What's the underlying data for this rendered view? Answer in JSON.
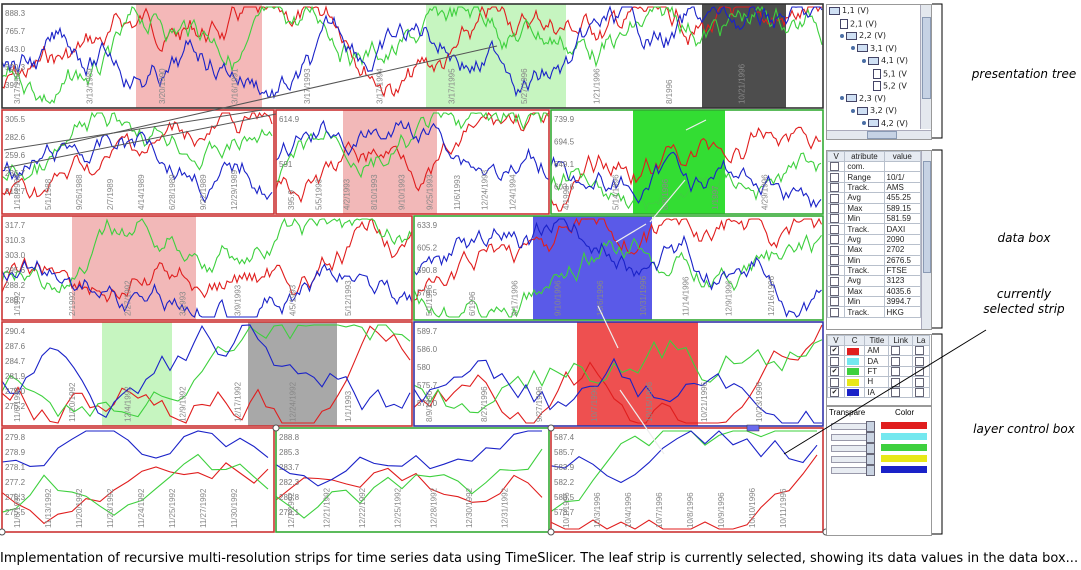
{
  "colors": {
    "red": "#e01e1e",
    "cyan": "#74e8ef",
    "green": "#3ed03e",
    "yellow": "#e8e818",
    "blue": "#1a22c8",
    "strip_red": "#d03030",
    "strip_green": "#36b036",
    "strip_blue": "#3a44cc",
    "strip_gray": "#444444"
  },
  "rows": [
    {
      "labels": [
        "888.3",
        "765.7",
        "643.0",
        "520.3",
        "397"
      ],
      "strips": [
        {
          "ticks": [
            "3/17/1988",
            "3/13/1989",
            "3/20/1990",
            "3/16/1991",
            "3/17/1993",
            "3/17/1994",
            "3/17/1995",
            "5/27/1996",
            "1/21/1996",
            "8/1996",
            "10/21/1996"
          ]
        }
      ]
    },
    {
      "labels": [
        "305.5",
        "282.6",
        "259.6",
        "236.7",
        "213.7"
      ],
      "strips": [
        {
          "ticks": [
            "1/18/1988",
            "5/1/1988",
            "9/26/1988",
            "2/7/1989",
            "4/14/1989",
            "6/28/1989",
            "9/22/1989",
            "12/29/1989"
          ]
        },
        {
          "labels": [
            "614.9",
            "591"
          ],
          "ticks": [
            "395.9",
            "5/5/1993",
            "4/2/1993",
            "8/10/1993",
            "9/10/1993",
            "9/25/1993",
            "11/6/1993",
            "12/24/1993",
            "1/24/1994"
          ]
        },
        {
          "labels": [
            "739.9",
            "694.5",
            "649.1",
            "603.6"
          ],
          "ticks": [
            "4/1996",
            "5/14/1996",
            "6/9/1996",
            "1/1997",
            "4/29/1996"
          ]
        }
      ]
    },
    {
      "labels": [
        "317.7",
        "310.3",
        "303.0",
        "295.6",
        "288.2",
        "280.7"
      ],
      "strips": [
        {
          "ticks": [
            "1/1992",
            "2/1992",
            "2/27/1992",
            "3/1993",
            "3/9/1993",
            "4/5/1993",
            "5/12/1993"
          ]
        },
        {
          "labels": [
            "633.9",
            "605.2",
            "590.8",
            "576.5"
          ],
          "ticks": [
            "5/1/1996",
            "6/1996",
            "8/17/1996",
            "9/10/1996",
            "10/6/1996",
            "10/31/1996",
            "11/14/1996",
            "12/9/1996",
            "12/16/1996"
          ]
        }
      ]
    },
    {
      "labels": [
        "290.4",
        "287.6",
        "284.7",
        "281.9",
        "279.0",
        "276.2"
      ],
      "strips": [
        {
          "ticks": [
            "11/6/1992",
            "11/20/1992",
            "12/4/1992",
            "12/9/1992",
            "12/17/1992",
            "12/24/1992",
            "1/1/1993"
          ]
        },
        {
          "labels": [
            "589.7",
            "586.0",
            "580",
            "575.7",
            "571.0"
          ],
          "ticks": [
            "8/9/1996",
            "8/27/1996",
            "9/27/1996",
            "10/7/1996",
            "10/15/1996",
            "10/21/1996",
            "10/23/1996"
          ]
        }
      ]
    },
    {
      "labels": [
        "279.8",
        "278.9",
        "278.1",
        "277.2",
        "276.3",
        "275.5"
      ],
      "strips": [
        {
          "ticks": [
            "11/6/1992",
            "11/13/1992",
            "11/20/1992",
            "11/23/1992",
            "11/24/1992",
            "11/25/1992",
            "11/27/1992",
            "11/30/1992"
          ]
        },
        {
          "labels": [
            "288.8",
            "285.3",
            "283.7",
            "282.3",
            "280.8",
            "279.1"
          ],
          "ticks": [
            "12/7/1992",
            "12/21/1992",
            "12/22/1992",
            "12/25/1992",
            "12/28/1992",
            "12/30/1992",
            "12/31/1992"
          ]
        },
        {
          "labels": [
            "587.4",
            "585.7",
            "583.9",
            "582.2",
            "580.5",
            "578.7"
          ],
          "ticks": [
            "10/1/1996",
            "10/3/1996",
            "10/4/1996",
            "10/7/1996",
            "10/8/1996",
            "10/9/1996",
            "10/10/1996",
            "10/11/1996"
          ]
        }
      ]
    }
  ],
  "tree": {
    "rows": [
      {
        "kind": "folder",
        "label": "1,1 (V)",
        "indent": 0
      },
      {
        "kind": "doc",
        "label": "2,1 (V)",
        "indent": 1
      },
      {
        "kind": "folder",
        "label": "2,2 (V)",
        "indent": 1
      },
      {
        "kind": "folder",
        "label": "3,1 (V)",
        "indent": 2
      },
      {
        "kind": "folder",
        "label": "4,1 (V)",
        "indent": 3
      },
      {
        "kind": "doc",
        "label": "5,1 (V",
        "indent": 4
      },
      {
        "kind": "doc",
        "label": "5,2 (V",
        "indent": 4
      },
      {
        "kind": "folder",
        "label": "2,3 (V)",
        "indent": 1
      },
      {
        "kind": "folder",
        "label": "3,2 (V)",
        "indent": 2
      },
      {
        "kind": "folder",
        "label": "4,2 (V)",
        "indent": 3
      }
    ]
  },
  "databox": {
    "headers": [
      "V",
      "atribute",
      "value"
    ],
    "rows": [
      [
        "com.",
        ""
      ],
      [
        "Range",
        "10/1/"
      ],
      [
        "Track.",
        "AMS"
      ],
      [
        "Avg",
        "455.25"
      ],
      [
        "Max",
        "589.15"
      ],
      [
        "Min",
        "581.59"
      ],
      [
        "Track.",
        "DAXI"
      ],
      [
        "Avg",
        "2090"
      ],
      [
        "Max",
        "2702"
      ],
      [
        "Min",
        "2676.5"
      ],
      [
        "Track.",
        "FTSE"
      ],
      [
        "Avg",
        "3123"
      ],
      [
        "Max",
        "4035.6"
      ],
      [
        "Min",
        "3994.7"
      ],
      [
        "Track.",
        "HKG"
      ]
    ]
  },
  "layers": {
    "headers": [
      "V",
      "C",
      "Title",
      "Link",
      "La"
    ],
    "rows": [
      {
        "checked": true,
        "color": "red",
        "title": "AM"
      },
      {
        "checked": false,
        "color": "cyan",
        "title": "DA"
      },
      {
        "checked": true,
        "color": "green",
        "title": "FT"
      },
      {
        "checked": false,
        "color": "yellow",
        "title": "H"
      },
      {
        "checked": true,
        "color": "blue",
        "title": "IA"
      }
    ],
    "transparency_label": "Transpare",
    "color_label": "Color"
  },
  "annotations": {
    "tree": "presentation tree",
    "data": "data box",
    "strip": "currently selected strip",
    "layer": "layer control box"
  },
  "caption": "Implementation of recursive multi-resolution  strips for time series data  using TimeSlicer. The leaf strip is currently selected, showing its data values in the data box..."
}
